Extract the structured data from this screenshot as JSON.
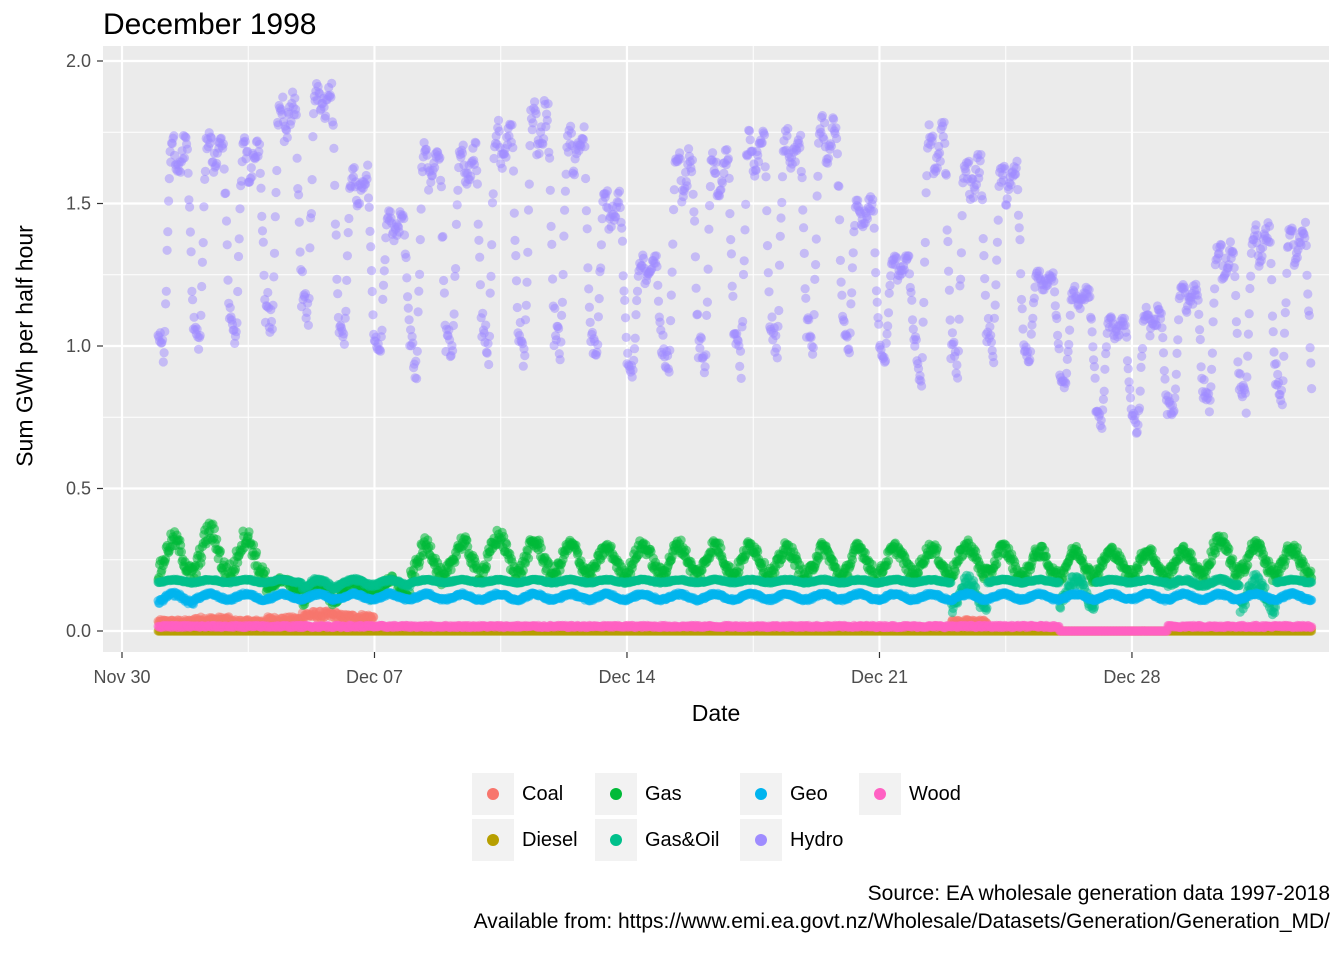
{
  "chart_data": {
    "type": "scatter",
    "title": "December 1998",
    "xlabel": "Date",
    "ylabel": "Sum GWh per half hour",
    "caption": [
      "Source: EA wholesale generation data 1997-2018",
      "Available from: https://www.emi.ea.govt.nz/Wholesale/Datasets/Generation/Generation_MD/"
    ],
    "x_ticks": [
      "Nov 30",
      "Dec 07",
      "Dec 14",
      "Dec 21",
      "Dec 28"
    ],
    "y_ticks": [
      "0.0",
      "0.5",
      "1.0",
      "1.5",
      "2.0"
    ],
    "xlim": [
      "1998-11-30",
      "1999-01-04"
    ],
    "ylim": [
      -0.08,
      2.0
    ],
    "grid": true,
    "legend_position": "bottom",
    "sampling": "half-hourly, 48 points per day",
    "series": [
      {
        "name": "Coal",
        "color": "#F8766D",
        "daily_peak": [
          0.04,
          0.05,
          0.04,
          0.05,
          0.07,
          0.06,
          0.01,
          0.01,
          0.01,
          0.01,
          0.01,
          0.01,
          0.01,
          0.01,
          0.01,
          0.01,
          0.01,
          0.01,
          0.01,
          0.01,
          0.01,
          0.01,
          0.04,
          0.01,
          0.01,
          0.0,
          0.0,
          0.0,
          0.01,
          0.01,
          0.01,
          0.01
        ]
      },
      {
        "name": "Diesel",
        "color": "#B79F00",
        "daily_peak": [
          0.0,
          0.0,
          0.0,
          0.0,
          0.0,
          0.0,
          0.0,
          0.0,
          0.0,
          0.0,
          0.0,
          0.0,
          0.0,
          0.0,
          0.0,
          0.0,
          0.0,
          0.0,
          0.0,
          0.0,
          0.0,
          0.0,
          0.0,
          0.0,
          0.0,
          0.0,
          0.0,
          0.0,
          0.0,
          0.0,
          0.0,
          0.0
        ]
      },
      {
        "name": "Gas",
        "color": "#00BA38",
        "daily_low": [
          0.2,
          0.2,
          0.19,
          0.14,
          0.1,
          0.12,
          0.12,
          0.18,
          0.2,
          0.21,
          0.2,
          0.2,
          0.2,
          0.2,
          0.2,
          0.2,
          0.2,
          0.19,
          0.19,
          0.19,
          0.2,
          0.2,
          0.2,
          0.19,
          0.19,
          0.19,
          0.2,
          0.19,
          0.2,
          0.2,
          0.2,
          0.19
        ],
        "daily_high": [
          0.32,
          0.35,
          0.33,
          0.18,
          0.17,
          0.17,
          0.18,
          0.3,
          0.31,
          0.33,
          0.31,
          0.3,
          0.29,
          0.3,
          0.3,
          0.3,
          0.3,
          0.29,
          0.29,
          0.29,
          0.29,
          0.29,
          0.3,
          0.29,
          0.28,
          0.28,
          0.28,
          0.28,
          0.28,
          0.32,
          0.3,
          0.29
        ]
      },
      {
        "name": "Gas&Oil",
        "color": "#00C08B",
        "daily_low": [
          0.17,
          0.17,
          0.17,
          0.17,
          0.15,
          0.16,
          0.16,
          0.17,
          0.17,
          0.17,
          0.17,
          0.17,
          0.17,
          0.17,
          0.17,
          0.17,
          0.17,
          0.17,
          0.17,
          0.17,
          0.17,
          0.17,
          0.08,
          0.17,
          0.17,
          0.09,
          0.17,
          0.17,
          0.16,
          0.16,
          0.08,
          0.17
        ],
        "daily_high": [
          0.18,
          0.18,
          0.18,
          0.18,
          0.18,
          0.18,
          0.18,
          0.18,
          0.18,
          0.18,
          0.18,
          0.18,
          0.18,
          0.18,
          0.18,
          0.18,
          0.18,
          0.18,
          0.18,
          0.18,
          0.18,
          0.18,
          0.18,
          0.18,
          0.18,
          0.18,
          0.18,
          0.18,
          0.18,
          0.18,
          0.18,
          0.18
        ]
      },
      {
        "name": "Geo",
        "color": "#00B4EF",
        "daily_low": [
          0.1,
          0.11,
          0.11,
          0.11,
          0.11,
          0.11,
          0.11,
          0.11,
          0.11,
          0.11,
          0.11,
          0.11,
          0.11,
          0.11,
          0.11,
          0.11,
          0.11,
          0.11,
          0.11,
          0.11,
          0.11,
          0.11,
          0.11,
          0.11,
          0.11,
          0.11,
          0.11,
          0.11,
          0.11,
          0.11,
          0.11,
          0.11
        ],
        "daily_high": [
          0.13,
          0.13,
          0.13,
          0.13,
          0.13,
          0.13,
          0.13,
          0.13,
          0.13,
          0.13,
          0.13,
          0.13,
          0.13,
          0.13,
          0.13,
          0.13,
          0.13,
          0.13,
          0.13,
          0.13,
          0.13,
          0.13,
          0.13,
          0.13,
          0.13,
          0.13,
          0.13,
          0.13,
          0.13,
          0.13,
          0.13,
          0.13
        ]
      },
      {
        "name": "Hydro",
        "color": "#9F8CFF",
        "daily_low": [
          0.95,
          1.0,
          1.02,
          1.05,
          1.1,
          1.0,
          0.96,
          0.9,
          0.95,
          0.97,
          0.93,
          0.98,
          0.95,
          0.9,
          0.9,
          0.92,
          0.93,
          0.98,
          1.0,
          0.99,
          0.95,
          0.87,
          0.92,
          0.98,
          0.95,
          0.85,
          0.72,
          0.7,
          0.75,
          0.78,
          0.8,
          0.82
        ],
        "daily_high": [
          1.7,
          1.73,
          1.7,
          1.86,
          1.91,
          1.6,
          1.45,
          1.68,
          1.68,
          1.75,
          1.82,
          1.73,
          1.52,
          1.3,
          1.65,
          1.65,
          1.73,
          1.73,
          1.77,
          1.5,
          1.3,
          1.74,
          1.63,
          1.62,
          1.25,
          1.19,
          1.09,
          1.12,
          1.2,
          1.34,
          1.4,
          1.4
        ]
      },
      {
        "name": "Wood",
        "color": "#FF61C3",
        "daily_peak": [
          0.02,
          0.02,
          0.02,
          0.02,
          0.02,
          0.02,
          0.02,
          0.02,
          0.02,
          0.02,
          0.02,
          0.02,
          0.02,
          0.02,
          0.02,
          0.02,
          0.02,
          0.02,
          0.02,
          0.02,
          0.02,
          0.02,
          0.02,
          0.02,
          0.02,
          0.0,
          0.0,
          0.0,
          0.02,
          0.02,
          0.02,
          0.02
        ]
      }
    ]
  }
}
